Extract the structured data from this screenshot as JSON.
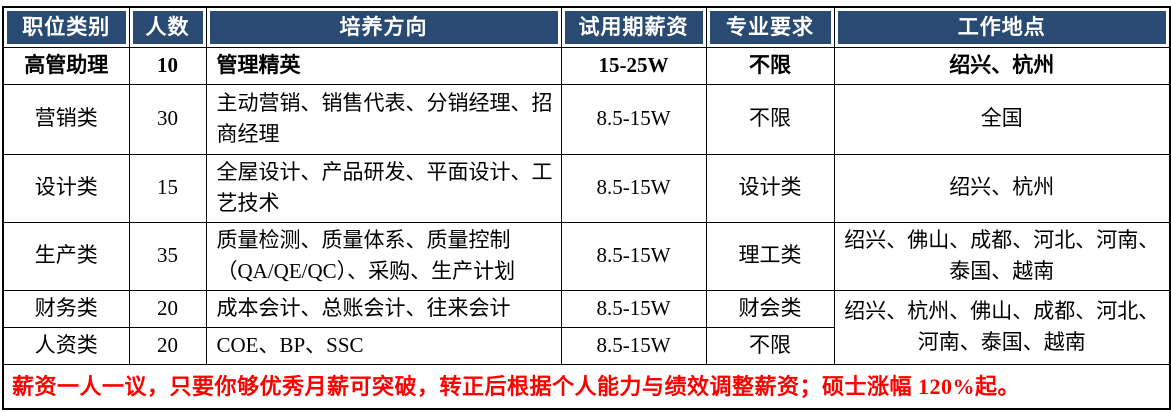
{
  "colors": {
    "header_bg": "#294a72",
    "header_text": "#ffffff",
    "footer_text": "#ff0000",
    "grid": "#000000"
  },
  "table": {
    "headers": [
      "职位类别",
      "人数",
      "培养方向",
      "试用期薪资",
      "专业要求",
      "工作地点"
    ],
    "rows": [
      {
        "category": "高管助理",
        "count": "10",
        "direction": "管理精英",
        "salary": "15-25W",
        "major": "不限",
        "location": "绍兴、杭州"
      },
      {
        "category": "营销类",
        "count": "30",
        "direction": "主动营销、销售代表、分销经理、招商经理",
        "salary": "8.5-15W",
        "major": "不限",
        "location": "全国"
      },
      {
        "category": "设计类",
        "count": "15",
        "direction": "全屋设计、产品研发、平面设计、工艺技术",
        "salary": "8.5-15W",
        "major": "设计类",
        "location": "绍兴、杭州"
      },
      {
        "category": "生产类",
        "count": "35",
        "direction": "质量检测、质量体系、质量控制（QA/QE/QC）、采购、生产计划",
        "salary": "8.5-15W",
        "major": "理工类",
        "location": "绍兴、佛山、成都、河北、河南、泰国、越南"
      },
      {
        "category": "财务类",
        "count": "20",
        "direction": "成本会计、总账会计、往来会计",
        "salary": "8.5-15W",
        "major": "财会类",
        "location": "绍兴、杭州、佛山、成都、河北、河南、泰国、越南"
      },
      {
        "category": "人资类",
        "count": "20",
        "direction": "COE、BP、SSC",
        "salary": "8.5-15W",
        "major": "不限"
      }
    ],
    "footer_note": "薪资一人一议，只要你够优秀月薪可突破，转正后根据个人能力与绩效调整薪资；硕士涨幅 120%起。"
  }
}
